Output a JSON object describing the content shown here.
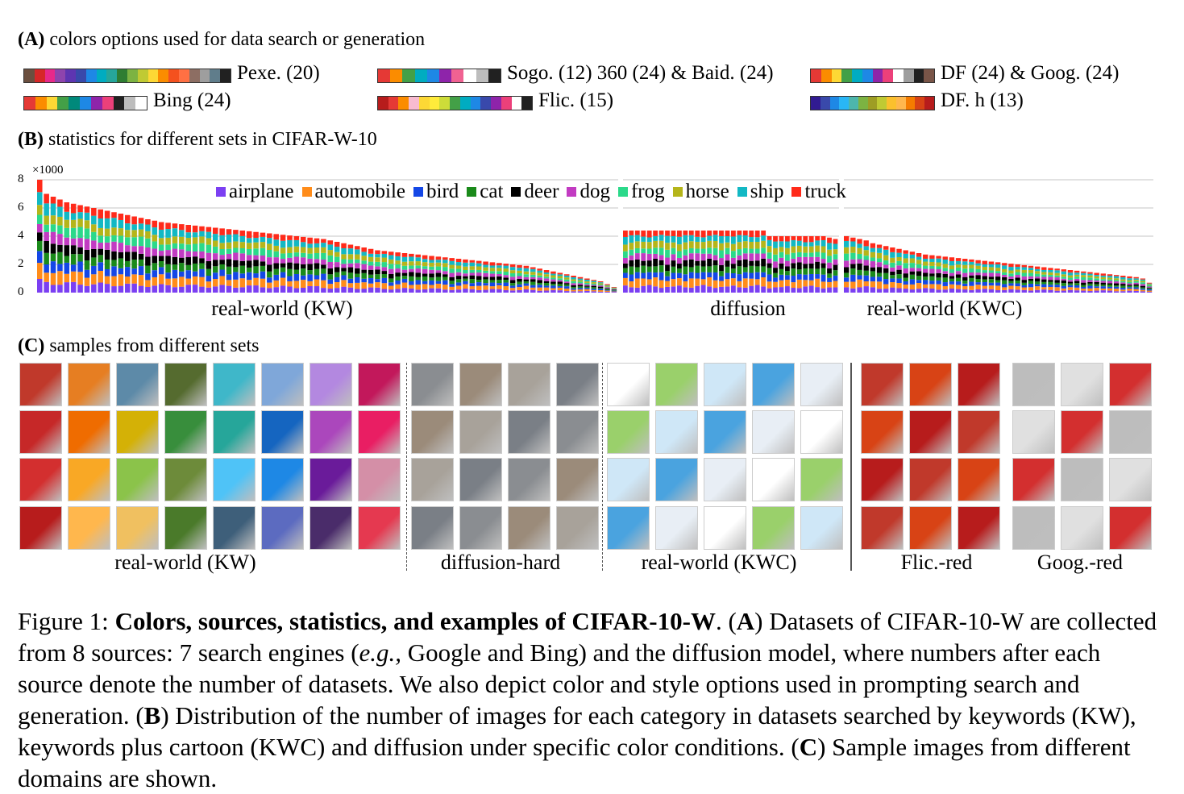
{
  "section_a": {
    "letter": "(A)",
    "title": "colors options used for data search or generation",
    "palettes": [
      {
        "label": "Pexe. (20)",
        "colors": [
          "#6b4f3f",
          "#d62728",
          "#e7298a",
          "#8e44ad",
          "#5e35b1",
          "#3949ab",
          "#1e88e5",
          "#00acc1",
          "#26a69a",
          "#2e7d32",
          "#7cb342",
          "#c0ca33",
          "#fdd835",
          "#fb8c00",
          "#f4511e",
          "#ff7043",
          "#8d6e63",
          "#9e9e9e",
          "#607d8b",
          "#212121"
        ]
      },
      {
        "label": "Sogo. (12) 360 (24) & Baid. (24)",
        "colors": [
          "#e53935",
          "#fb8c00",
          "#43a047",
          "#00acc1",
          "#1e88e5",
          "#8e24aa",
          "#f06292",
          "#ffffff",
          "#bdbdbd",
          "#212121"
        ]
      },
      {
        "label": "DF (24) & Goog. (24)",
        "colors": [
          "#e53935",
          "#fb8c00",
          "#fdd835",
          "#43a047",
          "#00acc1",
          "#1e88e5",
          "#8e24aa",
          "#ec407a",
          "#ffffff",
          "#9e9e9e",
          "#212121",
          "#795548"
        ]
      },
      {
        "label": "Bing (24)",
        "colors": [
          "#e53935",
          "#fb8c00",
          "#fdd835",
          "#43a047",
          "#00897b",
          "#1e88e5",
          "#8e24aa",
          "#ec407a",
          "#212121",
          "#bdbdbd",
          "#ffffff"
        ]
      },
      {
        "label": "Flic. (15)",
        "colors": [
          "#b71c1c",
          "#e53935",
          "#fb8c00",
          "#f8bbd0",
          "#fdd835",
          "#ffeb3b",
          "#cddc39",
          "#43a047",
          "#00acc1",
          "#1e88e5",
          "#3949ab",
          "#8e24aa",
          "#ec407a",
          "#ffffff",
          "#212121"
        ]
      },
      {
        "label": "DF. h (13)",
        "colors": [
          "#311b92",
          "#3949ab",
          "#1e88e5",
          "#29b6f6",
          "#4db6ac",
          "#7cb342",
          "#9e9d24",
          "#c0ca33",
          "#fbc02d",
          "#ffb74d",
          "#f57c00",
          "#d84315",
          "#b71c1c"
        ]
      }
    ]
  },
  "section_b": {
    "letter": "(B)",
    "title": "statistics for different sets in CIFAR-W-10",
    "multiplier": "×1000",
    "yticks": [
      "0",
      "2",
      "4",
      "6",
      "8"
    ],
    "group_labels": [
      "real-world (KW)",
      "diffusion",
      "real-world (KWC)"
    ]
  },
  "chart_data": {
    "type": "bar",
    "stacked": true,
    "ylim": [
      0,
      8
    ],
    "grid": true,
    "legend_placement": "top",
    "series_order": [
      "airplane",
      "automobile",
      "bird",
      "cat",
      "deer",
      "dog",
      "frog",
      "horse",
      "ship",
      "truck"
    ],
    "series_colors": {
      "airplane": "#7b3ff2",
      "automobile": "#ff8c1a",
      "bird": "#1447e6",
      "cat": "#1a8a1a",
      "deer": "#000000",
      "dog": "#c23bc2",
      "frog": "#2bd98a",
      "horse": "#b5b51a",
      "ship": "#12b8c4",
      "truck": "#ff2a1a"
    },
    "groups": [
      {
        "name": "real-world (KW)",
        "totals": [
          8.0,
          7.0,
          6.8,
          6.6,
          6.4,
          6.3,
          6.2,
          6.1,
          6.0,
          5.9,
          5.8,
          5.7,
          5.6,
          5.5,
          5.4,
          5.3,
          5.2,
          5.1,
          5.0,
          4.95,
          4.9,
          4.85,
          4.8,
          4.75,
          4.7,
          4.65,
          4.6,
          4.55,
          4.5,
          4.45,
          4.4,
          4.35,
          4.3,
          4.25,
          4.2,
          4.15,
          4.1,
          4.05,
          4.0,
          3.95,
          3.9,
          3.85,
          3.8,
          3.7,
          3.6,
          3.5,
          3.4,
          3.3,
          3.2,
          3.1,
          3.0,
          2.95,
          2.9,
          2.85,
          2.8,
          2.75,
          2.7,
          2.65,
          2.6,
          2.55,
          2.5,
          2.45,
          2.4,
          2.35,
          2.3,
          2.25,
          2.2,
          2.15,
          2.1,
          2.05,
          2.0,
          1.95,
          1.9,
          1.8,
          1.7,
          1.6,
          1.5,
          1.4,
          1.3,
          1.2,
          1.1,
          1.0,
          0.9,
          0.8,
          0.6,
          0.4
        ]
      },
      {
        "name": "diffusion",
        "totals": [
          4.4,
          4.4,
          4.4,
          4.4,
          4.4,
          4.4,
          4.4,
          4.4,
          4.4,
          4.4,
          4.4,
          4.4,
          4.4,
          4.4,
          4.4,
          4.4,
          4.4,
          4.4,
          4.4,
          4.4,
          4.4,
          4.4,
          4.4,
          4.4,
          4.0,
          4.0,
          4.0,
          4.0,
          4.0,
          4.0,
          4.0,
          4.0,
          4.0,
          4.0,
          3.9,
          3.8
        ]
      },
      {
        "name": "real-world (KWC)",
        "totals": [
          4.0,
          3.9,
          3.8,
          3.7,
          3.5,
          3.4,
          3.3,
          3.2,
          3.1,
          3.0,
          2.9,
          2.8,
          2.7,
          2.65,
          2.6,
          2.55,
          2.5,
          2.45,
          2.4,
          2.35,
          2.3,
          2.25,
          2.2,
          2.15,
          2.1,
          2.05,
          2.0,
          1.95,
          1.9,
          1.85,
          1.8,
          1.75,
          1.7,
          1.65,
          1.6,
          1.55,
          1.5,
          1.45,
          1.4,
          1.35,
          1.3,
          1.25,
          1.2,
          1.15,
          1.1,
          1.0,
          0.7
        ]
      }
    ]
  },
  "section_c": {
    "letter": "(C)",
    "title": "samples from different sets",
    "group_labels": [
      "real-world (KW)",
      "diffusion-hard",
      "real-world (KWC)",
      "Flic.-red",
      "Goog.-red"
    ]
  },
  "caption": {
    "prefix": "Figure 1: ",
    "bold": "Colors, sources, statistics, and examples of CIFAR-10-W",
    "p1": ". (",
    "a": "A",
    "p2": ") Datasets of CIFAR-10-W are collected from 8 sources: 7 search engines (",
    "eg": "e.g.,",
    "p3": " Google and Bing) and the diffusion model, where numbers after each source denote the number of datasets. We also depict color and style options used in prompting search and generation. (",
    "b": "B",
    "p4": ") Distribution of the number of images for each category in datasets searched by keywords (KW), keywords plus cartoon (KWC) and diffusion under specific color conditions. (",
    "c": "C",
    "p5": ") Sample images from different domains are shown."
  }
}
